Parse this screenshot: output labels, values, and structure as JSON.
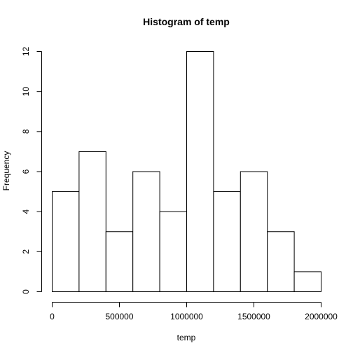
{
  "chart_data": {
    "type": "bar",
    "title": "Histogram of temp",
    "xlabel": "temp",
    "ylabel": "Frequency",
    "bin_edges": [
      0,
      200000,
      400000,
      600000,
      800000,
      1000000,
      1200000,
      1400000,
      1600000,
      1800000,
      2000000
    ],
    "categories": [
      "0-200000",
      "200000-400000",
      "400000-600000",
      "600000-800000",
      "800000-1000000",
      "1000000-1200000",
      "1200000-1400000",
      "1400000-1600000",
      "1600000-1800000",
      "1800000-2000000"
    ],
    "values": [
      5,
      7,
      3,
      6,
      4,
      12,
      5,
      6,
      3,
      1
    ],
    "xlim": [
      0,
      2000000
    ],
    "ylim": [
      0,
      12
    ],
    "x_ticks": [
      0,
      500000,
      1000000,
      1500000,
      2000000
    ],
    "x_tick_labels": [
      "0",
      "500000",
      "1000000",
      "1500000",
      "2000000"
    ],
    "y_ticks": [
      0,
      2,
      4,
      6,
      8,
      10,
      12
    ],
    "y_tick_labels": [
      "0",
      "2",
      "4",
      "6",
      "8",
      "10",
      "12"
    ],
    "grid": false,
    "legend": "none"
  }
}
